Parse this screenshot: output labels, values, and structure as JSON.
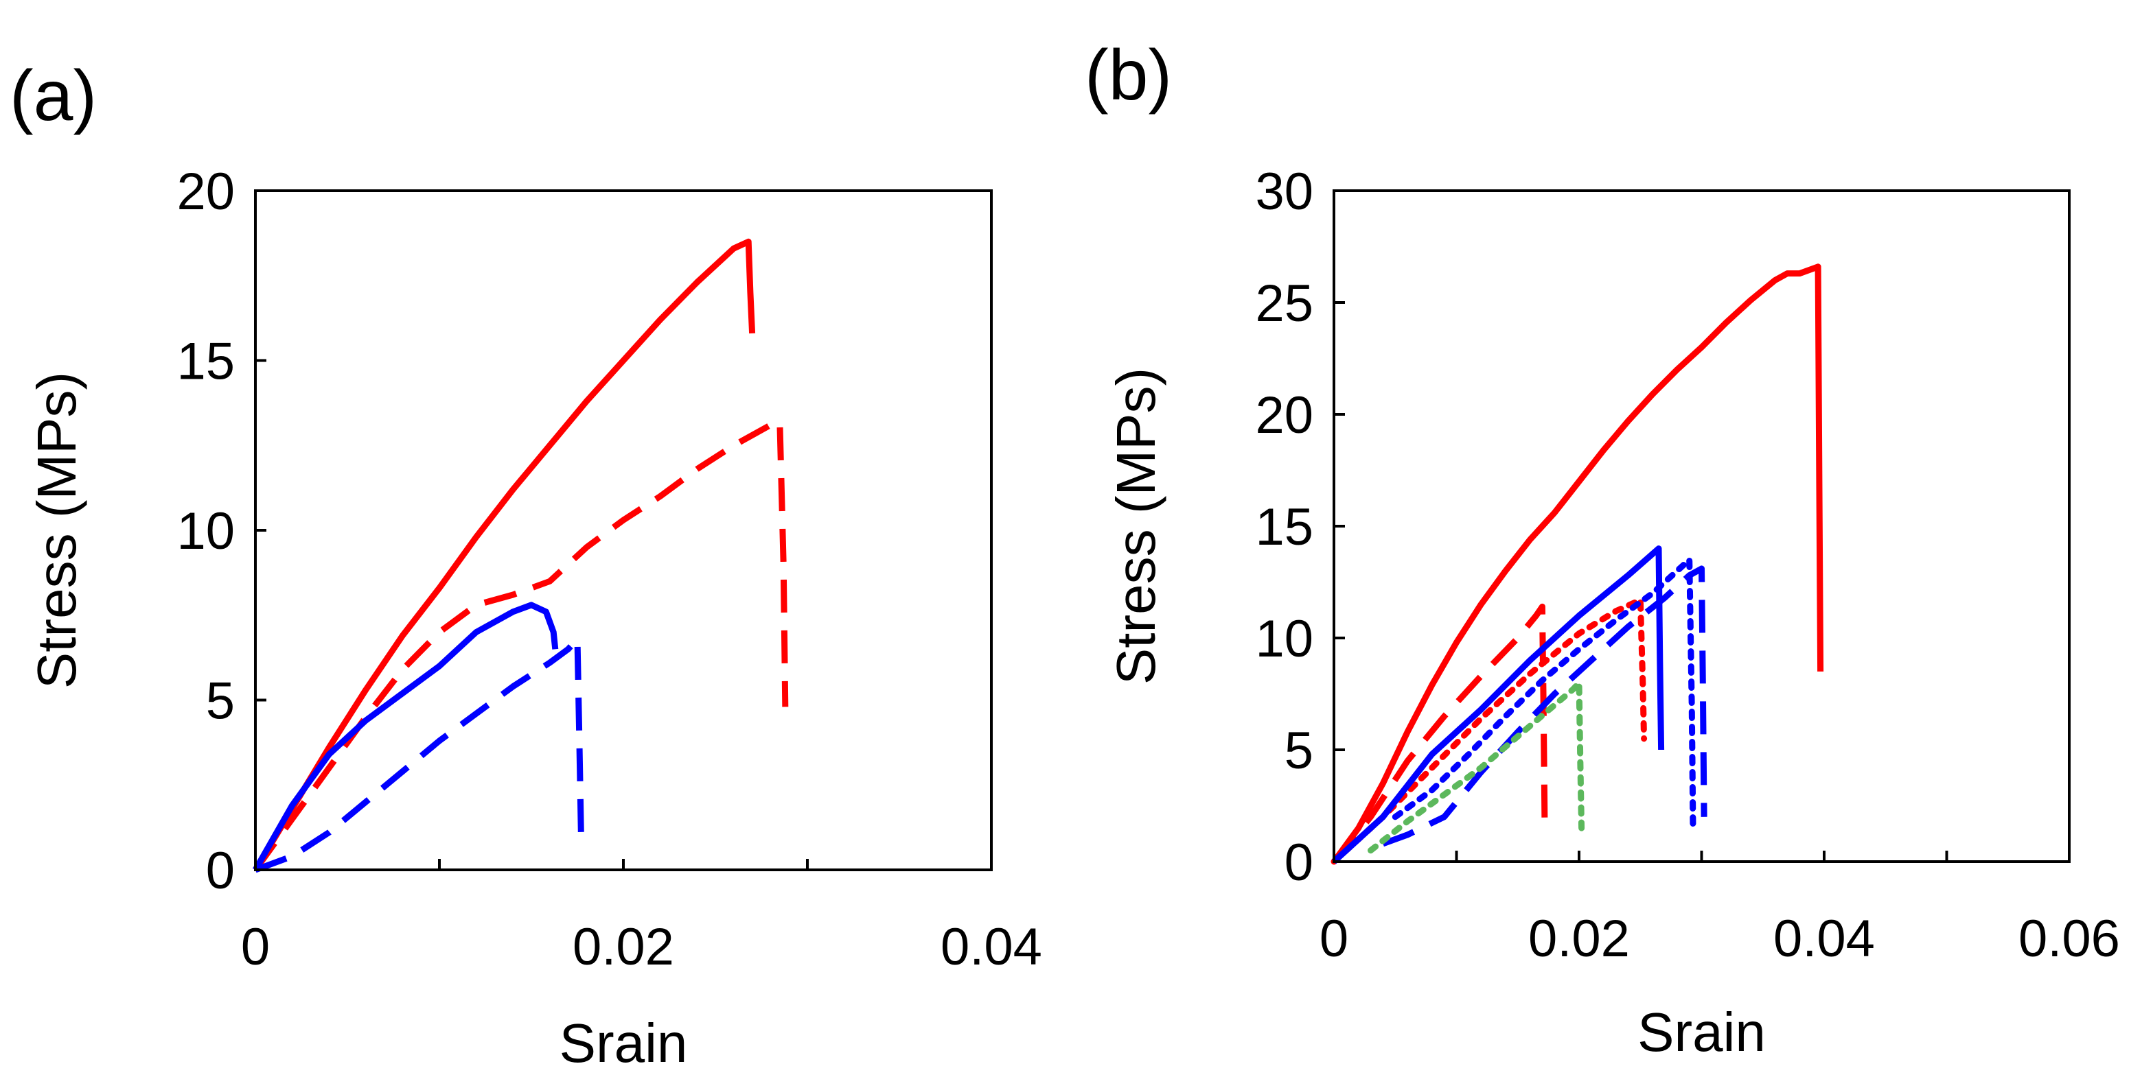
{
  "chart_data": [
    {
      "panel_label": "(a)",
      "type": "line",
      "title": "",
      "xlabel": "Srain",
      "ylabel": "Stress (MPs)",
      "xlim": [
        0,
        0.04
      ],
      "ylim": [
        0,
        20
      ],
      "x_ticks": [
        0,
        0.01,
        0.02,
        0.03,
        0.04
      ],
      "x_tick_labels": [
        "0",
        "",
        "0.02",
        "",
        "0.04"
      ],
      "y_ticks": [
        0,
        5,
        10,
        15,
        20
      ],
      "y_tick_labels": [
        "0",
        "5",
        "10",
        "15",
        "20"
      ],
      "grid": false,
      "series": [
        {
          "name": "red solid",
          "color": "#ff0000",
          "style": "solid",
          "x": [
            0,
            0.002,
            0.004,
            0.006,
            0.008,
            0.01,
            0.012,
            0.014,
            0.016,
            0.018,
            0.02,
            0.022,
            0.024,
            0.026,
            0.0268,
            0.0269,
            0.027
          ],
          "y": [
            0,
            1.8,
            3.6,
            5.3,
            6.9,
            8.3,
            9.8,
            11.2,
            12.5,
            13.8,
            15.0,
            16.2,
            17.3,
            18.3,
            18.5,
            17.0,
            15.8
          ]
        },
        {
          "name": "red dashed",
          "color": "#ff0000",
          "style": "dashed",
          "x": [
            0,
            0.002,
            0.004,
            0.006,
            0.008,
            0.01,
            0.012,
            0.014,
            0.016,
            0.018,
            0.02,
            0.022,
            0.024,
            0.026,
            0.028,
            0.0285,
            0.0287,
            0.0288
          ],
          "y": [
            0,
            1.5,
            3.0,
            4.5,
            5.9,
            7.0,
            7.8,
            8.1,
            8.5,
            9.5,
            10.3,
            11.0,
            11.8,
            12.5,
            13.1,
            13.2,
            9.0,
            4.8
          ]
        },
        {
          "name": "blue solid",
          "color": "#0000ff",
          "style": "solid",
          "x": [
            0,
            0.002,
            0.004,
            0.006,
            0.008,
            0.01,
            0.012,
            0.014,
            0.015,
            0.0158,
            0.0162,
            0.0163
          ],
          "y": [
            0,
            1.9,
            3.4,
            4.4,
            5.2,
            6.0,
            7.0,
            7.6,
            7.8,
            7.6,
            7.0,
            6.5
          ]
        },
        {
          "name": "blue dashed",
          "color": "#0000ff",
          "style": "dashed",
          "x": [
            0,
            0.002,
            0.004,
            0.006,
            0.008,
            0.01,
            0.012,
            0.014,
            0.016,
            0.017,
            0.0175,
            0.0176,
            0.0177
          ],
          "y": [
            0,
            0.4,
            1.1,
            2.0,
            2.9,
            3.8,
            4.6,
            5.4,
            6.1,
            6.5,
            6.8,
            4.0,
            1.0
          ]
        }
      ]
    },
    {
      "panel_label": "(b)",
      "type": "line",
      "title": "",
      "xlabel": "Srain",
      "ylabel": "Stress (MPs)",
      "xlim": [
        0,
        0.06
      ],
      "ylim": [
        0,
        30
      ],
      "x_ticks": [
        0,
        0.01,
        0.02,
        0.03,
        0.04,
        0.05,
        0.06
      ],
      "x_tick_labels": [
        "0",
        "",
        "0.02",
        "",
        "0.04",
        "",
        "0.06"
      ],
      "y_ticks": [
        0,
        5,
        10,
        15,
        20,
        25,
        30
      ],
      "y_tick_labels": [
        "0",
        "5",
        "10",
        "15",
        "20",
        "25",
        "30"
      ],
      "grid": false,
      "series": [
        {
          "name": "red solid",
          "color": "#ff0000",
          "style": "solid",
          "x": [
            0,
            0.002,
            0.004,
            0.006,
            0.008,
            0.01,
            0.012,
            0.014,
            0.016,
            0.018,
            0.02,
            0.022,
            0.024,
            0.026,
            0.028,
            0.03,
            0.032,
            0.034,
            0.036,
            0.037,
            0.038,
            0.039,
            0.0395,
            0.0396,
            0.0397
          ],
          "y": [
            0,
            1.5,
            3.5,
            5.8,
            7.9,
            9.8,
            11.5,
            13.0,
            14.4,
            15.6,
            17.0,
            18.4,
            19.7,
            20.9,
            22.0,
            23.0,
            24.1,
            25.1,
            26.0,
            26.3,
            26.3,
            26.5,
            26.6,
            17.0,
            8.5
          ]
        },
        {
          "name": "red dashed",
          "color": "#ff0000",
          "style": "dashed",
          "x": [
            0,
            0.003,
            0.006,
            0.009,
            0.012,
            0.015,
            0.0165,
            0.017,
            0.0171,
            0.0172
          ],
          "y": [
            0,
            2.0,
            4.5,
            6.5,
            8.3,
            10.0,
            11.0,
            11.4,
            7.0,
            1.5
          ]
        },
        {
          "name": "red dotted",
          "color": "#ff0000",
          "style": "dotted",
          "x": [
            0,
            0.004,
            0.008,
            0.012,
            0.016,
            0.02,
            0.023,
            0.025,
            0.0252,
            0.0253
          ],
          "y": [
            0,
            2.0,
            4.2,
            6.4,
            8.4,
            10.2,
            11.2,
            11.7,
            8.0,
            5.5
          ]
        },
        {
          "name": "blue solid",
          "color": "#0000ff",
          "style": "solid",
          "x": [
            0,
            0.004,
            0.008,
            0.012,
            0.016,
            0.02,
            0.024,
            0.0265,
            0.0266,
            0.0267
          ],
          "y": [
            0,
            2.0,
            4.8,
            6.8,
            9.0,
            11.0,
            12.8,
            14.0,
            9.0,
            5.0
          ]
        },
        {
          "name": "blue dashed",
          "color": "#0000ff",
          "style": "dashed",
          "x": [
            0.004,
            0.006,
            0.009,
            0.012,
            0.015,
            0.018,
            0.021,
            0.024,
            0.027,
            0.029,
            0.03,
            0.0301,
            0.0302
          ],
          "y": [
            0.8,
            1.2,
            2.0,
            4.0,
            5.8,
            7.5,
            9.0,
            10.5,
            11.8,
            12.8,
            13.1,
            8.0,
            2.0
          ]
        },
        {
          "name": "blue dotted",
          "color": "#0000ff",
          "style": "dotted",
          "x": [
            0.005,
            0.008,
            0.011,
            0.014,
            0.017,
            0.02,
            0.023,
            0.026,
            0.028,
            0.029,
            0.0292,
            0.0293
          ],
          "y": [
            2.0,
            3.2,
            4.8,
            6.5,
            8.1,
            9.5,
            10.8,
            12.0,
            13.0,
            13.5,
            7.0,
            1.5
          ]
        },
        {
          "name": "green dotted",
          "color": "#5cb85c",
          "style": "dotted",
          "x": [
            0.003,
            0.006,
            0.009,
            0.012,
            0.015,
            0.018,
            0.0195,
            0.02,
            0.0201,
            0.0202
          ],
          "y": [
            0.5,
            1.8,
            3.0,
            4.2,
            5.6,
            7.0,
            7.7,
            8.0,
            4.5,
            1.5
          ]
        }
      ]
    }
  ]
}
